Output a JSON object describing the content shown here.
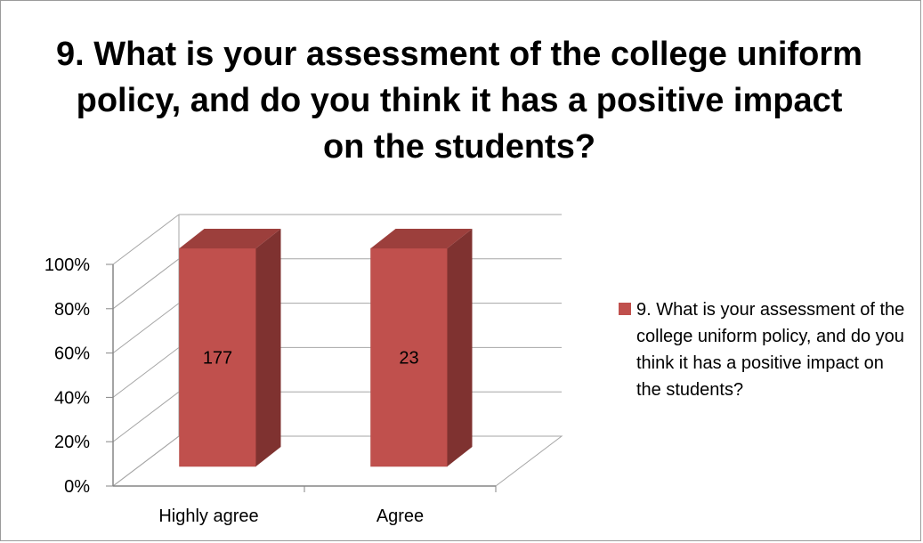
{
  "chart_data": {
    "type": "bar",
    "style": "3d-clustered-column",
    "title": "9. What is your assessment of the college uniform policy, and do you think it has a positive impact on the students?",
    "categories": [
      "Highly agree",
      "Agree"
    ],
    "series": [
      {
        "name": "9. What is your assessment of the college uniform policy, and do you think it has a positive impact on the students?",
        "values": [
          100,
          100
        ],
        "data_labels": [
          "177",
          "23"
        ],
        "color": "#c0504d"
      }
    ],
    "yticks": [
      "0%",
      "20%",
      "40%",
      "60%",
      "80%",
      "100%"
    ],
    "ylim": [
      0,
      100
    ],
    "grid": true,
    "legend_position": "right"
  }
}
